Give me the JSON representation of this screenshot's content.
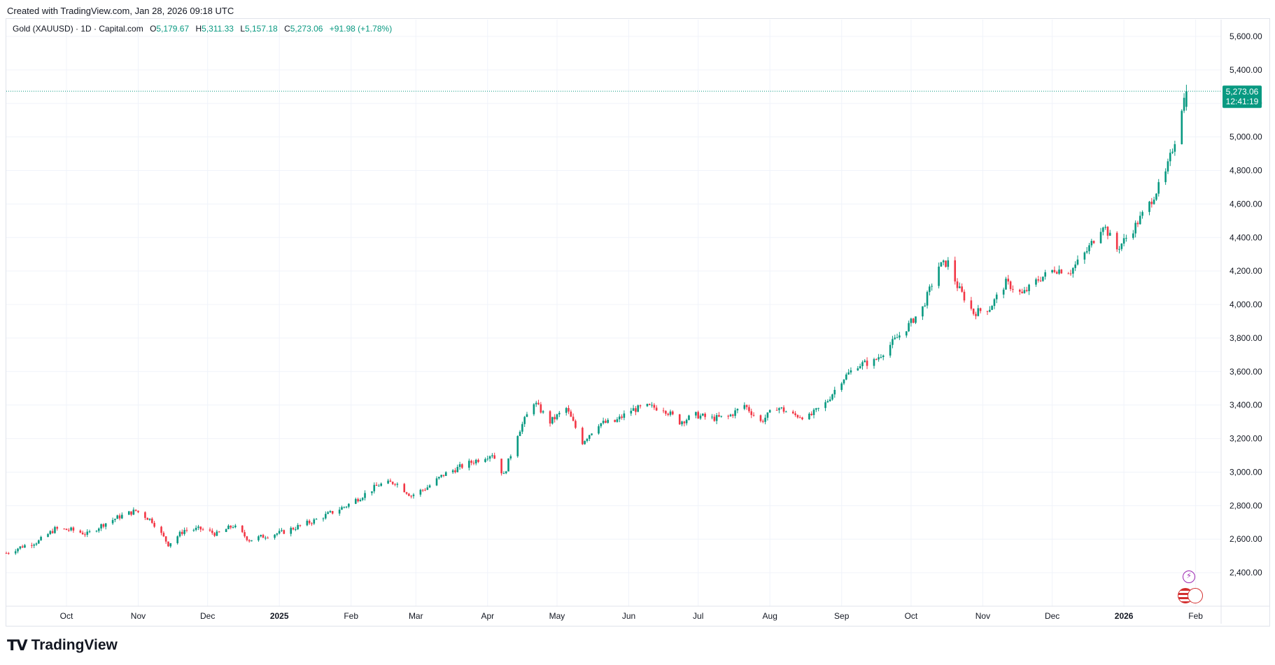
{
  "header": {
    "created_text": "Created with TradingView.com, Jan 28, 2026 09:18 UTC"
  },
  "legend": {
    "symbol": "Gold (XAUUSD) · 1D · Capital.com",
    "o_label": "O",
    "o_value": "5,179.67",
    "h_label": "H",
    "h_value": "5,311.33",
    "l_label": "L",
    "l_value": "5,157.18",
    "c_label": "C",
    "c_value": "5,273.06",
    "change": "+91.98 (+1.78%)"
  },
  "price_tag": {
    "price": "5,273.06",
    "countdown": "12:41:19"
  },
  "brand": {
    "name": "TradingView",
    "mark": "TV"
  },
  "icons": {
    "event_icon": "lightning-icon",
    "flag_icon": "us-flag-icon"
  },
  "colors": {
    "up": "#089981",
    "down": "#f23645",
    "grid": "#f0f3fa",
    "price_line": "#089981"
  },
  "chart_data": {
    "type": "candlestick",
    "interval": "1D",
    "ylim": [
      2200,
      5700
    ],
    "y_ticks": [
      "2,400.00",
      "2,600.00",
      "2,800.00",
      "3,000.00",
      "3,200.00",
      "3,400.00",
      "3,600.00",
      "3,800.00",
      "4,000.00",
      "4,200.00",
      "4,400.00",
      "4,600.00",
      "4,800.00",
      "5,000.00",
      "5,200.00",
      "5,400.00",
      "5,600.00"
    ],
    "x_ticks": [
      "Oct",
      "Nov",
      "Dec",
      "2025",
      "Feb",
      "Mar",
      "Apr",
      "May",
      "Jun",
      "Jul",
      "Aug",
      "Sep",
      "Oct",
      "Nov",
      "Dec",
      "2026",
      "Feb"
    ],
    "x_tick_dates": [
      "2024-10-01",
      "2024-11-01",
      "2024-12-01",
      "2025-01-01",
      "2025-02-01",
      "2025-03-01",
      "2025-04-01",
      "2025-05-01",
      "2025-06-01",
      "2025-07-01",
      "2025-08-01",
      "2025-09-01",
      "2025-10-01",
      "2025-11-01",
      "2025-12-01",
      "2026-01-01",
      "2026-02-01"
    ],
    "x_range": [
      "2024-09-05",
      "2026-02-12"
    ],
    "last_close": 5273.06,
    "closes": [
      [
        "2024-09-05",
        2517
      ],
      [
        "2024-09-12",
        2558
      ],
      [
        "2024-09-19",
        2588
      ],
      [
        "2024-09-26",
        2660
      ],
      [
        "2024-10-03",
        2655
      ],
      [
        "2024-10-10",
        2630
      ],
      [
        "2024-10-17",
        2690
      ],
      [
        "2024-10-24",
        2735
      ],
      [
        "2024-10-31",
        2770
      ],
      [
        "2024-11-07",
        2710
      ],
      [
        "2024-11-14",
        2570
      ],
      [
        "2024-11-21",
        2655
      ],
      [
        "2024-11-28",
        2660
      ],
      [
        "2024-12-05",
        2630
      ],
      [
        "2024-12-12",
        2680
      ],
      [
        "2024-12-19",
        2595
      ],
      [
        "2024-12-26",
        2620
      ],
      [
        "2025-01-02",
        2640
      ],
      [
        "2025-01-09",
        2675
      ],
      [
        "2025-01-16",
        2710
      ],
      [
        "2025-01-23",
        2755
      ],
      [
        "2025-01-30",
        2800
      ],
      [
        "2025-02-06",
        2860
      ],
      [
        "2025-02-13",
        2925
      ],
      [
        "2025-02-20",
        2940
      ],
      [
        "2025-02-27",
        2860
      ],
      [
        "2025-03-06",
        2910
      ],
      [
        "2025-03-13",
        2985
      ],
      [
        "2025-03-20",
        3030
      ],
      [
        "2025-03-27",
        3070
      ],
      [
        "2025-04-03",
        3110
      ],
      [
        "2025-04-08",
        2980
      ],
      [
        "2025-04-14",
        3230
      ],
      [
        "2025-04-21",
        3420
      ],
      [
        "2025-04-28",
        3300
      ],
      [
        "2025-05-05",
        3380
      ],
      [
        "2025-05-12",
        3180
      ],
      [
        "2025-05-19",
        3290
      ],
      [
        "2025-05-26",
        3300
      ],
      [
        "2025-06-02",
        3370
      ],
      [
        "2025-06-09",
        3390
      ],
      [
        "2025-06-16",
        3380
      ],
      [
        "2025-06-23",
        3300
      ],
      [
        "2025-06-30",
        3340
      ],
      [
        "2025-07-07",
        3320
      ],
      [
        "2025-07-14",
        3330
      ],
      [
        "2025-07-21",
        3400
      ],
      [
        "2025-07-28",
        3300
      ],
      [
        "2025-08-04",
        3390
      ],
      [
        "2025-08-11",
        3340
      ],
      [
        "2025-08-18",
        3330
      ],
      [
        "2025-08-25",
        3410
      ],
      [
        "2025-09-01",
        3550
      ],
      [
        "2025-09-08",
        3640
      ],
      [
        "2025-09-15",
        3660
      ],
      [
        "2025-09-22",
        3760
      ],
      [
        "2025-09-29",
        3860
      ],
      [
        "2025-10-06",
        3980
      ],
      [
        "2025-10-13",
        4230
      ],
      [
        "2025-10-17",
        4250
      ],
      [
        "2025-10-21",
        4110
      ],
      [
        "2025-10-28",
        3950
      ],
      [
        "2025-11-04",
        3980
      ],
      [
        "2025-11-11",
        4130
      ],
      [
        "2025-11-18",
        4060
      ],
      [
        "2025-11-25",
        4150
      ],
      [
        "2025-12-02",
        4210
      ],
      [
        "2025-12-09",
        4200
      ],
      [
        "2025-12-16",
        4320
      ],
      [
        "2025-12-23",
        4480
      ],
      [
        "2025-12-29",
        4330
      ],
      [
        "2026-01-05",
        4450
      ],
      [
        "2026-01-12",
        4600
      ],
      [
        "2026-01-19",
        4780
      ],
      [
        "2026-01-23",
        4980
      ],
      [
        "2026-01-26",
        5180
      ],
      [
        "2026-01-28",
        5273
      ]
    ]
  }
}
